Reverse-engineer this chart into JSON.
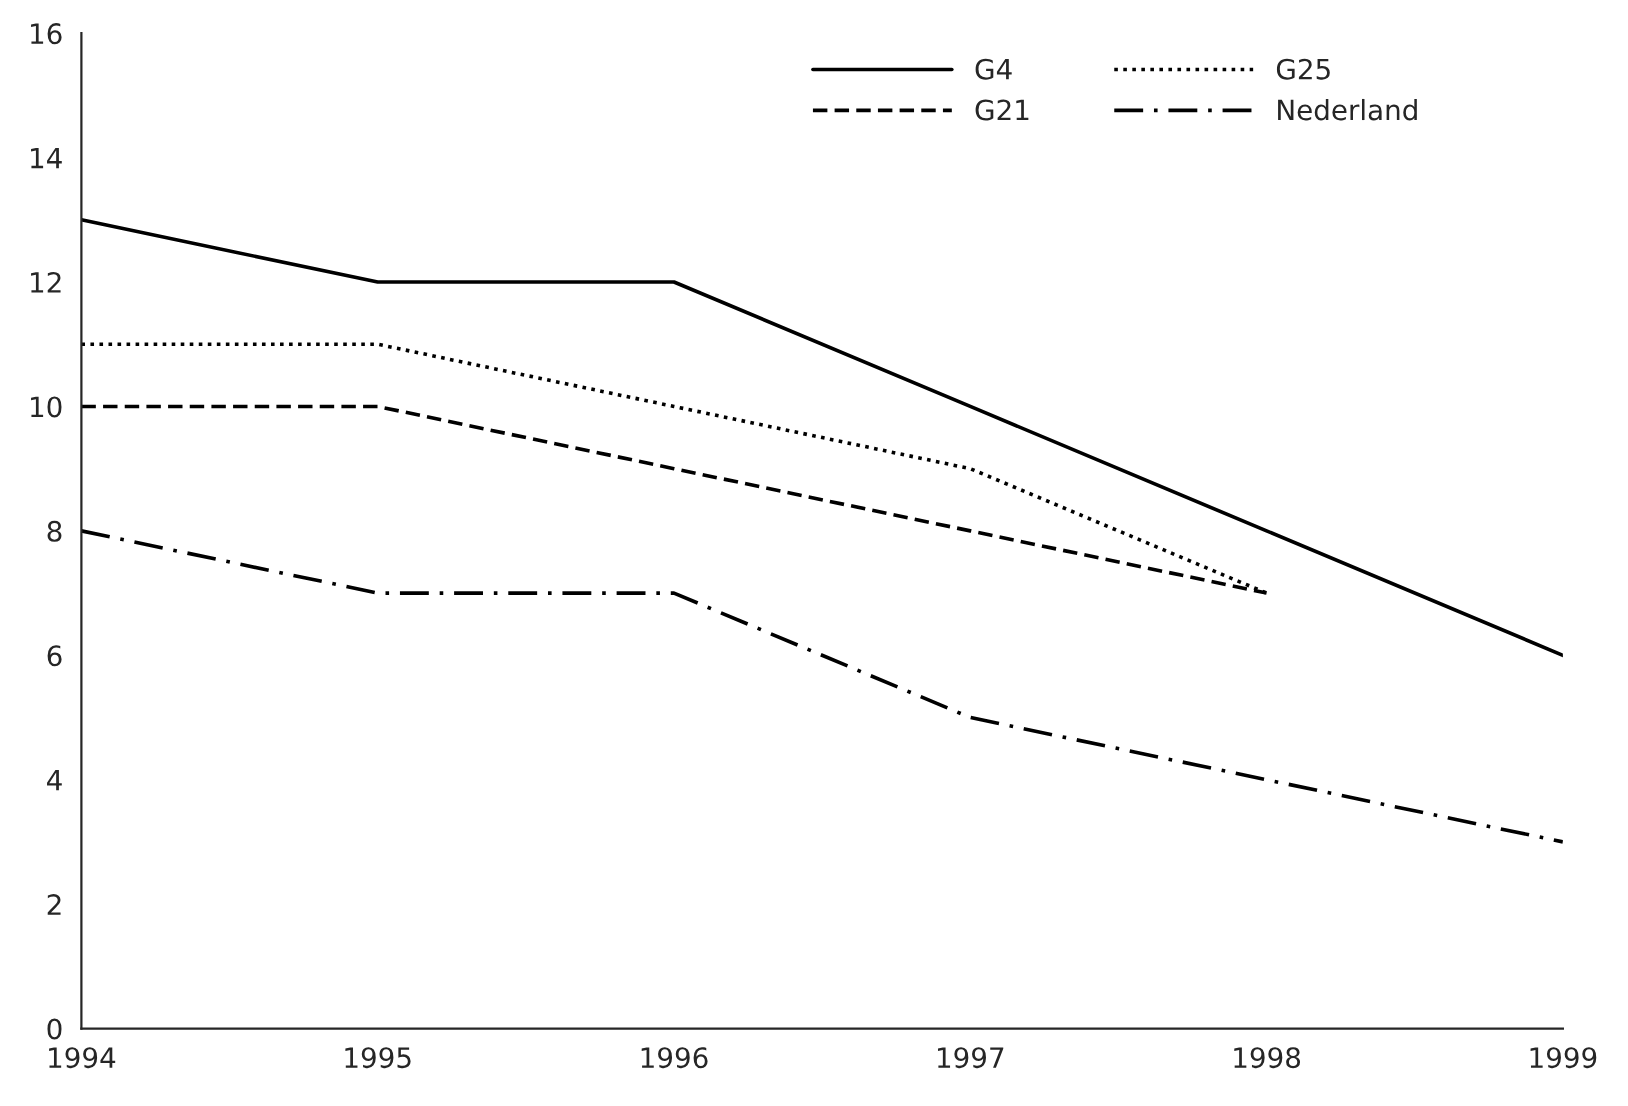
{
  "chart_data": {
    "type": "line",
    "x": [
      1994,
      1995,
      1996,
      1997,
      1998,
      1999
    ],
    "xlim": [
      1994,
      1999
    ],
    "xticks": [
      1994,
      1995,
      1996,
      1997,
      1998,
      1999
    ],
    "ylim": [
      0,
      16
    ],
    "yticks": [
      0,
      2,
      4,
      6,
      8,
      10,
      12,
      14,
      16
    ],
    "grid": false,
    "legend": "top right",
    "marker": "none",
    "series": [
      {
        "name": "G4",
        "color": "#000000",
        "line_style": "solid",
        "values": [
          13,
          12,
          12,
          10,
          8,
          6
        ]
      },
      {
        "name": "G21",
        "color": "#000000",
        "line_style": "dashed",
        "values": [
          10,
          10,
          9,
          8,
          7,
          null
        ]
      },
      {
        "name": "G25",
        "color": "#000000",
        "line_style": "dotted",
        "values": [
          11,
          11,
          10,
          9,
          7,
          null
        ]
      },
      {
        "name": "Nederland",
        "color": "#000000",
        "line_style": "dashdot",
        "values": [
          8,
          7,
          7,
          5,
          4,
          3
        ]
      }
    ]
  }
}
